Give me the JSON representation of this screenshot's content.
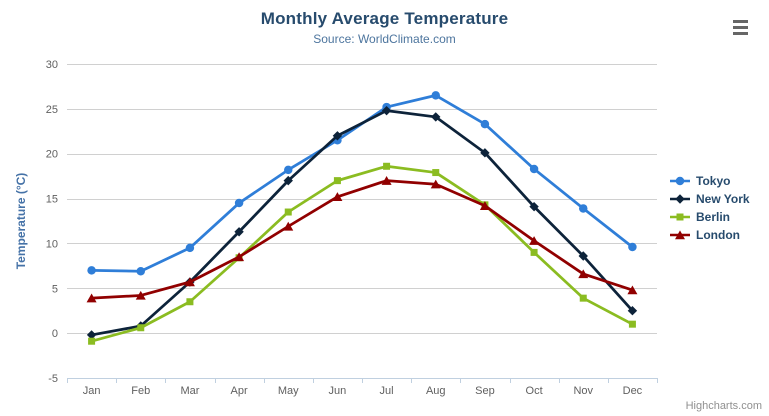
{
  "chart": {
    "title": "Monthly Average Temperature",
    "subtitle": "Source: WorldClimate.com",
    "credits": "Highcharts.com",
    "menu_icon": "hamburger-icon",
    "colors": {
      "title_text": "#274b6d",
      "subtitle_text": "#4d759e",
      "axis_title_text": "#4572a7",
      "axis_label_text": "#606060",
      "grid_line": "#d0d0d0",
      "axis_line": "#c0d0e0",
      "legend_text": "#274b6d",
      "credits_text": "#909090"
    }
  },
  "chart_data": {
    "type": "line",
    "title": "Monthly Average Temperature",
    "subtitle": "Source: WorldClimate.com",
    "xlabel": "",
    "ylabel": "Temperature (°C)",
    "ylim": [
      -5,
      30
    ],
    "yticks": [
      -5,
      0,
      5,
      10,
      15,
      20,
      25,
      30
    ],
    "grid": true,
    "legend_position": "right",
    "categories": [
      "Jan",
      "Feb",
      "Mar",
      "Apr",
      "May",
      "Jun",
      "Jul",
      "Aug",
      "Sep",
      "Oct",
      "Nov",
      "Dec"
    ],
    "series": [
      {
        "name": "Tokyo",
        "color": "#2f7ed8",
        "marker": "circle",
        "values": [
          7.0,
          6.9,
          9.5,
          14.5,
          18.2,
          21.5,
          25.2,
          26.5,
          23.3,
          18.3,
          13.9,
          9.6
        ]
      },
      {
        "name": "New York",
        "color": "#0d233a",
        "marker": "diamond",
        "values": [
          -0.2,
          0.8,
          5.7,
          11.3,
          17.0,
          22.0,
          24.8,
          24.1,
          20.1,
          14.1,
          8.6,
          2.5
        ]
      },
      {
        "name": "Berlin",
        "color": "#8bbc21",
        "marker": "square",
        "values": [
          -0.9,
          0.6,
          3.5,
          8.4,
          13.5,
          17.0,
          18.6,
          17.9,
          14.3,
          9.0,
          3.9,
          1.0
        ]
      },
      {
        "name": "London",
        "color": "#910000",
        "marker": "triangle",
        "values": [
          3.9,
          4.2,
          5.7,
          8.5,
          11.9,
          15.2,
          17.0,
          16.6,
          14.2,
          10.3,
          6.6,
          4.8
        ]
      }
    ]
  }
}
